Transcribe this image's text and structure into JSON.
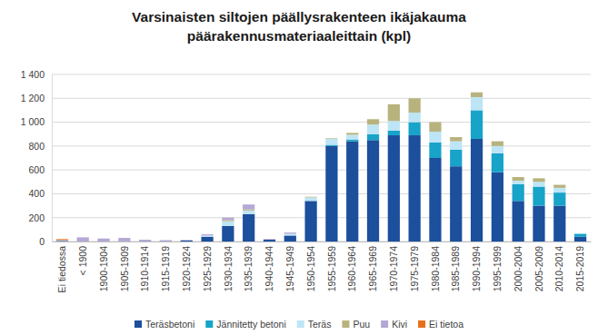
{
  "chart_data": {
    "type": "bar",
    "stacked": true,
    "grid": true,
    "legend": "bottom",
    "title": [
      "Varsinaisten siltojen päällysrakenteen ikäjakauma",
      "päärakennusmateriaaleittain (kpl)"
    ],
    "categories": [
      "Ei tiedossa",
      "< 1900",
      "1900-1904",
      "1905-1909",
      "1910-1914",
      "1915-1919",
      "1920-1924",
      "1925-1929",
      "1930-1934",
      "1935-1939",
      "1940-1944",
      "1945-1949",
      "1950-1954",
      "1955-1959",
      "1960-1964",
      "1965-1969",
      "1970-1974",
      "1975-1979",
      "1980-1984",
      "1985-1989",
      "1990-1994",
      "1995-1999",
      "2000-2004",
      "2005-2009",
      "2010-2014",
      "2015-2019"
    ],
    "series": [
      {
        "name": "Teräsbetoni",
        "color": "#1c4f9c",
        "values": [
          5,
          0,
          0,
          2,
          3,
          3,
          8,
          40,
          130,
          230,
          15,
          50,
          340,
          800,
          840,
          850,
          890,
          890,
          700,
          630,
          860,
          580,
          340,
          300,
          300,
          40
        ]
      },
      {
        "name": "Jännitetty betoni",
        "color": "#18a3c9",
        "values": [
          0,
          0,
          0,
          0,
          0,
          0,
          0,
          0,
          0,
          0,
          0,
          0,
          0,
          10,
          15,
          50,
          40,
          110,
          130,
          140,
          240,
          160,
          140,
          160,
          110,
          25
        ]
      },
      {
        "name": "Teräs",
        "color": "#bde5f5",
        "values": [
          2,
          0,
          0,
          0,
          0,
          0,
          0,
          10,
          40,
          30,
          0,
          15,
          30,
          50,
          40,
          80,
          80,
          80,
          90,
          70,
          110,
          60,
          30,
          40,
          40,
          5
        ]
      },
      {
        "name": "Puu",
        "color": "#b8b37e",
        "values": [
          0,
          0,
          0,
          0,
          0,
          0,
          0,
          0,
          10,
          10,
          0,
          0,
          5,
          5,
          15,
          45,
          140,
          120,
          80,
          35,
          40,
          40,
          30,
          30,
          25,
          0
        ]
      },
      {
        "name": "Kivi",
        "color": "#b5a7d6",
        "values": [
          5,
          35,
          25,
          28,
          12,
          8,
          5,
          10,
          20,
          40,
          5,
          10,
          0,
          0,
          0,
          0,
          0,
          0,
          0,
          0,
          0,
          0,
          0,
          0,
          0,
          0
        ]
      },
      {
        "name": "Ei tietoa",
        "color": "#e8701a",
        "values": [
          8,
          0,
          0,
          0,
          0,
          0,
          0,
          0,
          0,
          0,
          0,
          0,
          0,
          0,
          0,
          0,
          0,
          0,
          0,
          0,
          0,
          0,
          0,
          0,
          0,
          0
        ]
      }
    ],
    "ylim": [
      0,
      1400
    ],
    "yticks": [
      0,
      200,
      400,
      600,
      800,
      {
        "value": 1000,
        "label": "1 000"
      },
      {
        "value": 1200,
        "label": "1 200"
      },
      {
        "value": 1400,
        "label": "1 400"
      }
    ]
  }
}
